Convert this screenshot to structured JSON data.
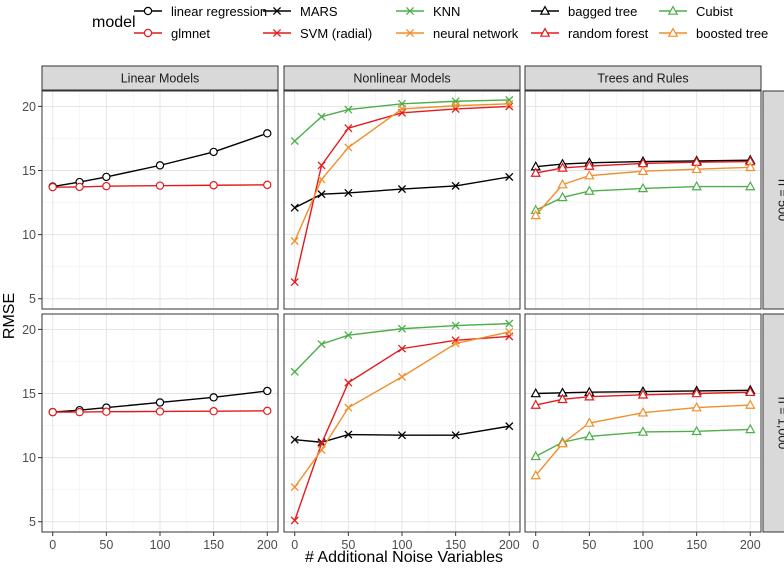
{
  "chart_data": {
    "type": "line",
    "ylabel": "RMSE",
    "xlabel": "# Additional Noise Variables",
    "legend": {
      "title": "model",
      "placement": "top",
      "entries": [
        {
          "name": "linear regression",
          "color": "#000000",
          "marker": "circle"
        },
        {
          "name": "glmnet",
          "color": "#e41a1c",
          "marker": "circle"
        },
        {
          "name": "MARS",
          "color": "#000000",
          "marker": "x"
        },
        {
          "name": "SVM (radial)",
          "color": "#e41a1c",
          "marker": "x"
        },
        {
          "name": "KNN",
          "color": "#4daf4a",
          "marker": "x"
        },
        {
          "name": "neural network",
          "color": "#f28e2b",
          "marker": "x"
        },
        {
          "name": "bagged tree",
          "color": "#000000",
          "marker": "triangle"
        },
        {
          "name": "random forest",
          "color": "#e41a1c",
          "marker": "triangle"
        },
        {
          "name": "Cubist",
          "color": "#4daf4a",
          "marker": "triangle"
        },
        {
          "name": "boosted tree",
          "color": "#f28e2b",
          "marker": "triangle"
        }
      ]
    },
    "x": [
      0,
      25,
      50,
      100,
      150,
      200
    ],
    "xticks": [
      "0",
      "50",
      "100",
      "150",
      "200"
    ],
    "xtick_values": [
      0,
      50,
      100,
      150,
      200
    ],
    "xlim": [
      -10,
      210
    ],
    "yticks": [
      "5",
      "10",
      "15",
      "20"
    ],
    "ytick_values": [
      5,
      10,
      15,
      20
    ],
    "ylim": [
      4.2,
      21.2
    ],
    "grid": true,
    "columns": [
      "Linear Models",
      "Nonlinear Models",
      "Trees and Rules"
    ],
    "rows": [
      "n =  500",
      "n = 1,000"
    ],
    "panels": [
      {
        "row": 0,
        "col": 0,
        "series": [
          {
            "name": "linear regression",
            "values": [
              13.75,
              14.1,
              14.5,
              15.4,
              16.45,
              17.9
            ]
          },
          {
            "name": "glmnet",
            "values": [
              13.7,
              13.72,
              13.78,
              13.82,
              13.85,
              13.88
            ]
          }
        ]
      },
      {
        "row": 0,
        "col": 1,
        "series": [
          {
            "name": "MARS",
            "values": [
              12.1,
              13.15,
              13.25,
              13.55,
              13.8,
              14.5
            ]
          },
          {
            "name": "SVM (radial)",
            "values": [
              6.3,
              15.4,
              18.3,
              19.5,
              19.8,
              20.0
            ]
          },
          {
            "name": "KNN",
            "values": [
              17.3,
              19.2,
              19.75,
              20.2,
              20.4,
              20.5
            ]
          },
          {
            "name": "neural network",
            "values": [
              9.5,
              14.3,
              16.8,
              19.8,
              20.05,
              20.2
            ]
          }
        ]
      },
      {
        "row": 0,
        "col": 2,
        "series": [
          {
            "name": "bagged tree",
            "values": [
              15.3,
              15.5,
              15.6,
              15.7,
              15.75,
              15.8
            ]
          },
          {
            "name": "random forest",
            "values": [
              14.8,
              15.2,
              15.35,
              15.55,
              15.65,
              15.7
            ]
          },
          {
            "name": "Cubist",
            "values": [
              11.9,
              12.9,
              13.4,
              13.6,
              13.75,
              13.75
            ]
          },
          {
            "name": "boosted tree",
            "values": [
              11.5,
              13.9,
              14.6,
              14.95,
              15.1,
              15.25
            ]
          }
        ]
      },
      {
        "row": 1,
        "col": 0,
        "series": [
          {
            "name": "linear regression",
            "values": [
              13.55,
              13.7,
              13.9,
              14.3,
              14.7,
              15.2
            ]
          },
          {
            "name": "glmnet",
            "values": [
              13.55,
              13.55,
              13.58,
              13.6,
              13.62,
              13.65
            ]
          }
        ]
      },
      {
        "row": 1,
        "col": 1,
        "series": [
          {
            "name": "MARS",
            "values": [
              11.4,
              11.2,
              11.8,
              11.75,
              11.75,
              12.45
            ]
          },
          {
            "name": "SVM (radial)",
            "values": [
              5.1,
              11.1,
              15.85,
              18.5,
              19.15,
              19.45
            ]
          },
          {
            "name": "KNN",
            "values": [
              16.7,
              18.85,
              19.55,
              20.05,
              20.3,
              20.45
            ]
          },
          {
            "name": "neural network",
            "values": [
              7.7,
              10.6,
              13.9,
              16.3,
              18.9,
              19.8
            ]
          }
        ]
      },
      {
        "row": 1,
        "col": 2,
        "series": [
          {
            "name": "bagged tree",
            "values": [
              15.0,
              15.05,
              15.1,
              15.15,
              15.2,
              15.25
            ]
          },
          {
            "name": "random forest",
            "values": [
              14.1,
              14.55,
              14.75,
              14.9,
              15.0,
              15.1
            ]
          },
          {
            "name": "Cubist",
            "values": [
              10.1,
              11.2,
              11.65,
              12.0,
              12.05,
              12.2
            ]
          },
          {
            "name": "boosted tree",
            "values": [
              8.6,
              11.1,
              12.7,
              13.5,
              13.9,
              14.1
            ]
          }
        ]
      }
    ]
  }
}
